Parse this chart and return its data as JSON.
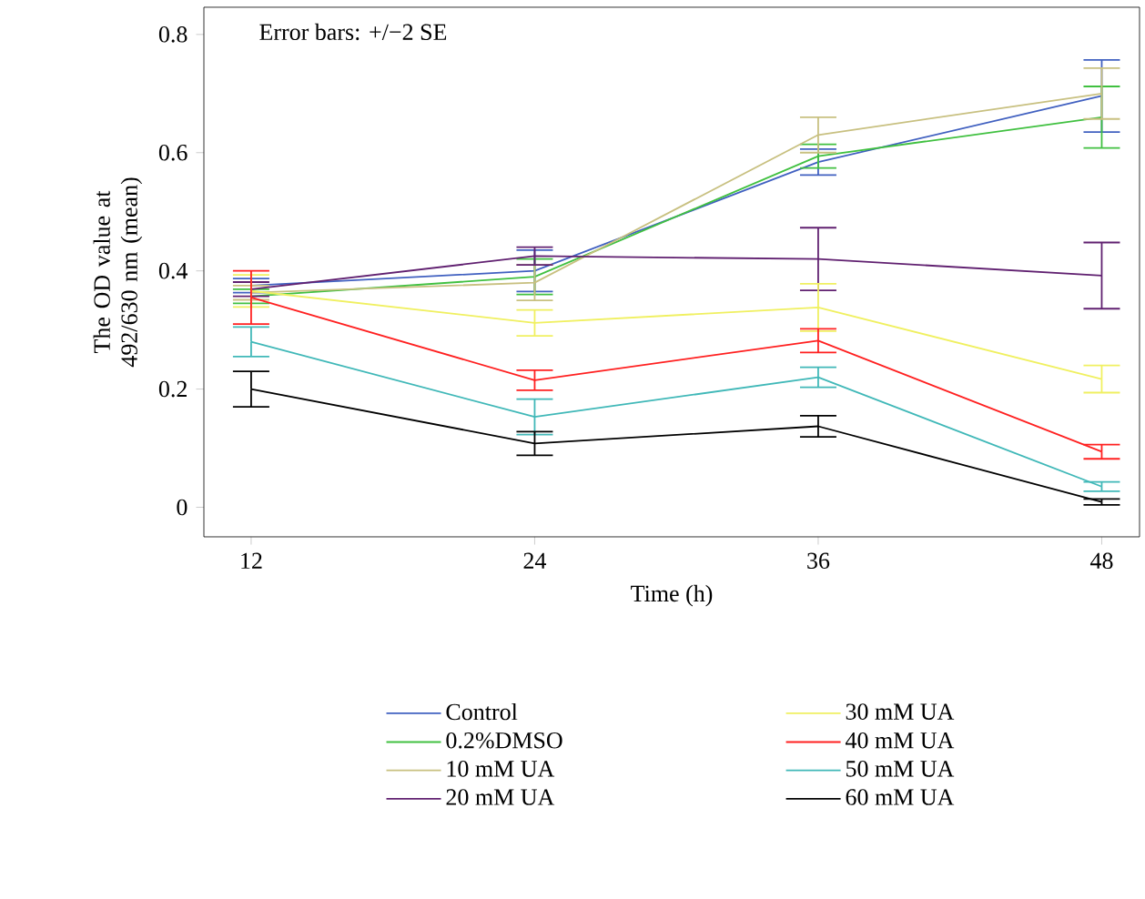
{
  "chart_data": {
    "type": "line",
    "xlabel": "Time (h)",
    "ylabel": "The OD value at 492/630 nm (mean)",
    "annotations": [
      "Error bars: +/−2 SE"
    ],
    "x": [
      12,
      24,
      36,
      48
    ],
    "xlim": [
      10,
      49.6
    ],
    "xticks": [
      12,
      24,
      36,
      48
    ],
    "ylim": [
      -0.05,
      0.846
    ],
    "yticks": [
      0,
      0.2,
      0.4,
      0.6,
      0.8
    ],
    "grid": false,
    "legend": "bottom",
    "marker": "none",
    "line_style": "solid",
    "series": [
      {
        "name": "Control",
        "color": "#4060c0",
        "values": [
          0.375,
          0.4,
          0.584,
          0.696
        ],
        "errors": [
          0.012,
          0.035,
          0.022,
          0.061
        ]
      },
      {
        "name": "0.2%DMSO",
        "color": "#40c040",
        "values": [
          0.357,
          0.39,
          0.594,
          0.66
        ],
        "errors": [
          0.012,
          0.03,
          0.02,
          0.052
        ]
      },
      {
        "name": "10 mM UA",
        "color": "#c8c080",
        "values": [
          0.363,
          0.38,
          0.63,
          0.7
        ],
        "errors": [
          0.012,
          0.03,
          0.03,
          0.043
        ]
      },
      {
        "name": "20 mM UA",
        "color": "#602070",
        "values": [
          0.369,
          0.425,
          0.42,
          0.392
        ],
        "errors": [
          0.012,
          0.015,
          0.053,
          0.056
        ]
      },
      {
        "name": "30 mM UA",
        "color": "#f0f060",
        "values": [
          0.366,
          0.312,
          0.338,
          0.217
        ],
        "errors": [
          0.027,
          0.022,
          0.04,
          0.023
        ]
      },
      {
        "name": "40 mM UA",
        "color": "#ff2020",
        "values": [
          0.355,
          0.215,
          0.282,
          0.094
        ],
        "errors": [
          0.045,
          0.017,
          0.02,
          0.012
        ]
      },
      {
        "name": "50 mM UA",
        "color": "#40b8b8",
        "values": [
          0.28,
          0.153,
          0.22,
          0.035
        ],
        "errors": [
          0.025,
          0.03,
          0.017,
          0.008
        ]
      },
      {
        "name": "60 mM UA",
        "color": "#000000",
        "values": [
          0.2,
          0.108,
          0.137,
          0.009
        ],
        "errors": [
          0.03,
          0.02,
          0.018,
          0.005
        ]
      }
    ]
  }
}
